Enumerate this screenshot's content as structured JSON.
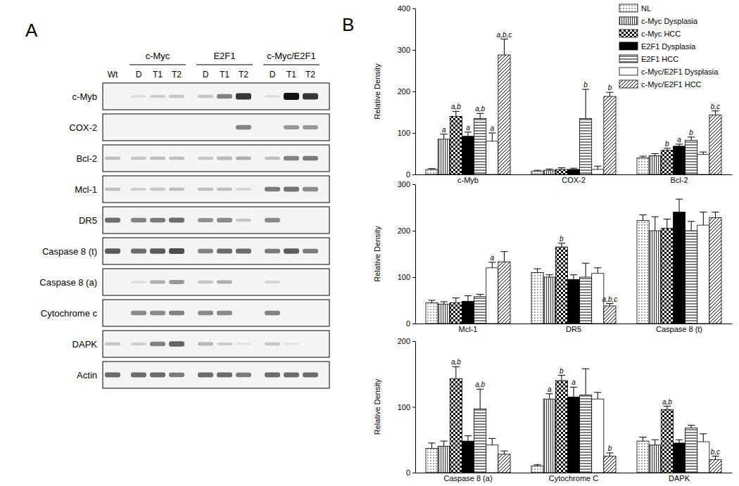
{
  "panel_labels": [
    "A",
    "B"
  ],
  "blot": {
    "control_lane": "Wt",
    "groups": [
      {
        "name": "c-Myc",
        "lanes": [
          "D",
          "T1",
          "T2"
        ]
      },
      {
        "name": "E2F1",
        "lanes": [
          "D",
          "T1",
          "T2"
        ]
      },
      {
        "name": "c-Myc/E2F1",
        "lanes": [
          "D",
          "T1",
          "T2"
        ]
      }
    ],
    "intensity_range": [
      0,
      3
    ],
    "rows": [
      {
        "label": "c-Myb",
        "bands": [
          0,
          0.3,
          0.5,
          0.6,
          0.6,
          1.5,
          2.5,
          0.3,
          3,
          2.5
        ]
      },
      {
        "label": "COX-2",
        "bands": [
          0,
          0,
          0,
          0,
          0,
          0,
          1.5,
          0,
          1.2,
          1.2
        ]
      },
      {
        "label": "Bcl-2",
        "bands": [
          0.7,
          0.6,
          0.7,
          0.7,
          0.6,
          0.8,
          0.9,
          0.7,
          1.5,
          1.6
        ]
      },
      {
        "label": "Mcl-1",
        "bands": [
          0.7,
          0.5,
          0.6,
          0.7,
          0.7,
          0.7,
          0.4,
          1.6,
          1.7,
          1.4
        ]
      },
      {
        "label": "DR5",
        "bands": [
          1.8,
          1.5,
          1.6,
          1.8,
          1.3,
          1.4,
          0.6,
          1.4,
          0,
          0
        ]
      },
      {
        "label": "Caspase 8 (t)",
        "bands": [
          2,
          1.8,
          2,
          2.2,
          1.5,
          1.8,
          1.8,
          1.6,
          2,
          1.6
        ]
      },
      {
        "label": "Caspase 8 (a)",
        "bands": [
          0,
          0.3,
          0.9,
          1.2,
          0.6,
          0.9,
          0,
          0.4,
          0,
          0
        ]
      },
      {
        "label": "Cytochrome c",
        "bands": [
          0,
          1.4,
          1.4,
          1.5,
          1.4,
          1.4,
          0,
          1.5,
          0,
          0
        ]
      },
      {
        "label": "DAPK",
        "bands": [
          0.6,
          0.5,
          1.5,
          1.9,
          0.8,
          0.5,
          0.2,
          0.6,
          0.2,
          0
        ]
      },
      {
        "label": "Actin",
        "bands": [
          1.8,
          1.8,
          1.8,
          1.6,
          1.8,
          1.8,
          1.6,
          1.8,
          1.8,
          1.8
        ]
      }
    ]
  },
  "chart_data": [
    {
      "type": "bar",
      "y_label": "Relative Density",
      "categories": [
        "c-Myb",
        "COX-2",
        "Bcl-2"
      ],
      "ylim": [
        0,
        400
      ],
      "yticks": [
        0,
        100,
        200,
        300,
        400
      ],
      "legend": "top-right",
      "series": [
        {
          "name": "NL",
          "color": "#ffffff",
          "values": [
            12,
            8,
            40
          ],
          "errors": [
            2,
            2,
            4
          ],
          "annotations": [
            null,
            null,
            null
          ]
        },
        {
          "name": "c-Myc Dysplasia",
          "color": "#ffffff",
          "values": [
            85,
            10,
            45
          ],
          "errors": [
            12,
            3,
            5
          ],
          "annotations": [
            "a",
            null,
            null
          ]
        },
        {
          "name": "c-Myc HCC",
          "color": "#ffffff",
          "values": [
            140,
            12,
            58
          ],
          "errors": [
            12,
            4,
            5
          ],
          "annotations": [
            "a,b",
            null,
            "b"
          ]
        },
        {
          "name": "E2F1 Dysplasia",
          "color": "#000000",
          "values": [
            92,
            12,
            68
          ],
          "errors": [
            10,
            3,
            5
          ],
          "annotations": [
            "a",
            null,
            "a"
          ]
        },
        {
          "name": "E2F1 HCC",
          "color": "#ffffff",
          "values": [
            135,
            135,
            82
          ],
          "errors": [
            12,
            70,
            8
          ],
          "annotations": [
            "a,b",
            "b",
            "b"
          ]
        },
        {
          "name": "c-Myc/E2F1 Dysplasia",
          "color": "#ffffff",
          "values": [
            80,
            12,
            48
          ],
          "errors": [
            20,
            8,
            6
          ],
          "annotations": [
            "a",
            null,
            null
          ]
        },
        {
          "name": "c-Myc/E2F1 HCC",
          "color": "#ffffff",
          "values": [
            288,
            188,
            143
          ],
          "errors": [
            38,
            10,
            10
          ],
          "annotations": [
            "a,b,c",
            "b",
            "b,c"
          ]
        }
      ]
    },
    {
      "type": "bar",
      "y_label": "Relative Density",
      "categories": [
        "Mcl-1",
        "DR5",
        "Caspase 8 (t)"
      ],
      "ylim": [
        0,
        300
      ],
      "yticks": [
        0,
        100,
        200,
        300
      ],
      "series": [
        {
          "color": "#ffffff",
          "values": [
            45,
            110,
            222
          ],
          "errors": [
            5,
            8,
            12
          ],
          "annotations": [
            null,
            null,
            null
          ]
        },
        {
          "color": "#ffffff",
          "values": [
            42,
            100,
            200
          ],
          "errors": [
            5,
            5,
            30
          ],
          "annotations": [
            null,
            null,
            null
          ]
        },
        {
          "color": "#ffffff",
          "values": [
            45,
            165,
            205
          ],
          "errors": [
            10,
            8,
            20
          ],
          "annotations": [
            null,
            "b",
            null
          ]
        },
        {
          "color": "#000000",
          "values": [
            48,
            95,
            240
          ],
          "errors": [
            12,
            10,
            28
          ],
          "annotations": [
            null,
            null,
            null
          ]
        },
        {
          "color": "#ffffff",
          "values": [
            58,
            100,
            200
          ],
          "errors": [
            5,
            30,
            20
          ],
          "annotations": [
            null,
            null,
            null
          ]
        },
        {
          "color": "#ffffff",
          "values": [
            120,
            108,
            212
          ],
          "errors": [
            12,
            12,
            28
          ],
          "annotations": [
            "a",
            null,
            null
          ]
        },
        {
          "color": "#ffffff",
          "values": [
            133,
            38,
            228
          ],
          "errors": [
            22,
            5,
            12
          ],
          "annotations": [
            null,
            "a,b,c",
            null
          ]
        }
      ]
    },
    {
      "type": "bar",
      "y_label": "Relative Density",
      "categories": [
        "Caspase 8 (a)",
        "Cytochrome C",
        "DAPK"
      ],
      "ylim": [
        0,
        200
      ],
      "yticks": [
        0,
        100,
        200
      ],
      "series": [
        {
          "color": "#ffffff",
          "values": [
            37,
            10,
            48
          ],
          "errors": [
            8,
            2,
            6
          ],
          "annotations": [
            null,
            null,
            null
          ]
        },
        {
          "color": "#ffffff",
          "values": [
            40,
            112,
            42
          ],
          "errors": [
            8,
            8,
            8
          ],
          "annotations": [
            null,
            "a",
            null
          ]
        },
        {
          "color": "#ffffff",
          "values": [
            143,
            140,
            96
          ],
          "errors": [
            18,
            8,
            5
          ],
          "annotations": [
            "a,b",
            "b",
            "a,b"
          ]
        },
        {
          "color": "#000000",
          "values": [
            48,
            115,
            45
          ],
          "errors": [
            8,
            15,
            5
          ],
          "annotations": [
            null,
            "a",
            null
          ]
        },
        {
          "color": "#ffffff",
          "values": [
            97,
            118,
            68
          ],
          "errors": [
            30,
            40,
            4
          ],
          "annotations": [
            "a,b",
            null,
            null
          ]
        },
        {
          "color": "#ffffff",
          "values": [
            42,
            112,
            47
          ],
          "errors": [
            10,
            10,
            12
          ],
          "annotations": [
            null,
            null,
            null
          ]
        },
        {
          "color": "#ffffff",
          "values": [
            28,
            25,
            20
          ],
          "errors": [
            5,
            5,
            5
          ],
          "annotations": [
            null,
            "b",
            "b,c"
          ]
        }
      ]
    }
  ]
}
